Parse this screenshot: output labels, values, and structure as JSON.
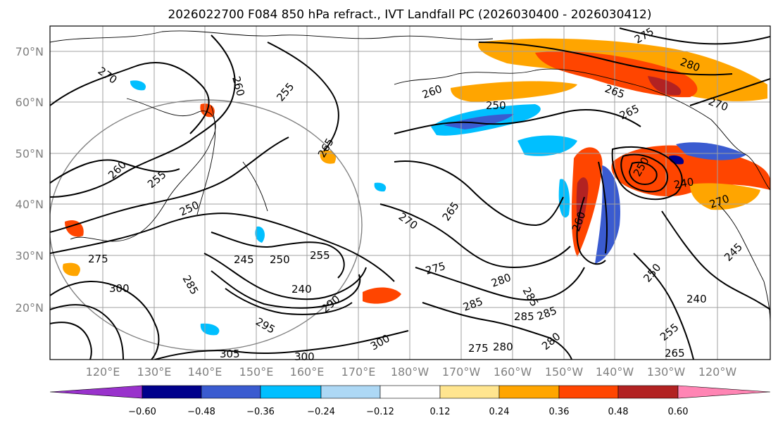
{
  "title": "2026022700 F084 850 hPa refract., IVT Landfall PC (2026030400 - 2026030412)",
  "map": {
    "lat_labels": [
      "70°N",
      "60°N",
      "50°N",
      "40°N",
      "30°N",
      "20°N"
    ],
    "lon_labels": [
      "120°E",
      "130°E",
      "140°E",
      "150°E",
      "160°E",
      "170°E",
      "180°W",
      "170°W",
      "160°W",
      "150°W",
      "140°W",
      "130°W",
      "120°W"
    ],
    "contour_labels": [
      "270",
      "260",
      "255",
      "265",
      "260",
      "255",
      "250",
      "275",
      "245",
      "250",
      "255",
      "240",
      "285",
      "300",
      "295",
      "290",
      "305",
      "300",
      "300",
      "270",
      "265",
      "275",
      "280",
      "285",
      "285",
      "285",
      "280",
      "285",
      "260",
      "250",
      "265",
      "275",
      "280",
      "265",
      "270",
      "270",
      "260",
      "250",
      "240",
      "245",
      "240",
      "250",
      "265",
      "280",
      "275",
      "255"
    ],
    "colors": {
      "land_contour": "#000000",
      "grid": "#a0a0a0",
      "ellipse": "#808080"
    }
  },
  "colorbar": {
    "colors": [
      "#9932cc",
      "#00008b",
      "#3a5bd0",
      "#00bfff",
      "#add8f5",
      "#ffffff",
      "#ffe58f",
      "#ffa500",
      "#ff4500",
      "#b22222",
      "#ff85b4"
    ],
    "tick_labels": [
      "−0.60",
      "−0.48",
      "−0.36",
      "−0.24",
      "−0.12",
      "0.12",
      "0.24",
      "0.36",
      "0.48",
      "0.60"
    ]
  }
}
